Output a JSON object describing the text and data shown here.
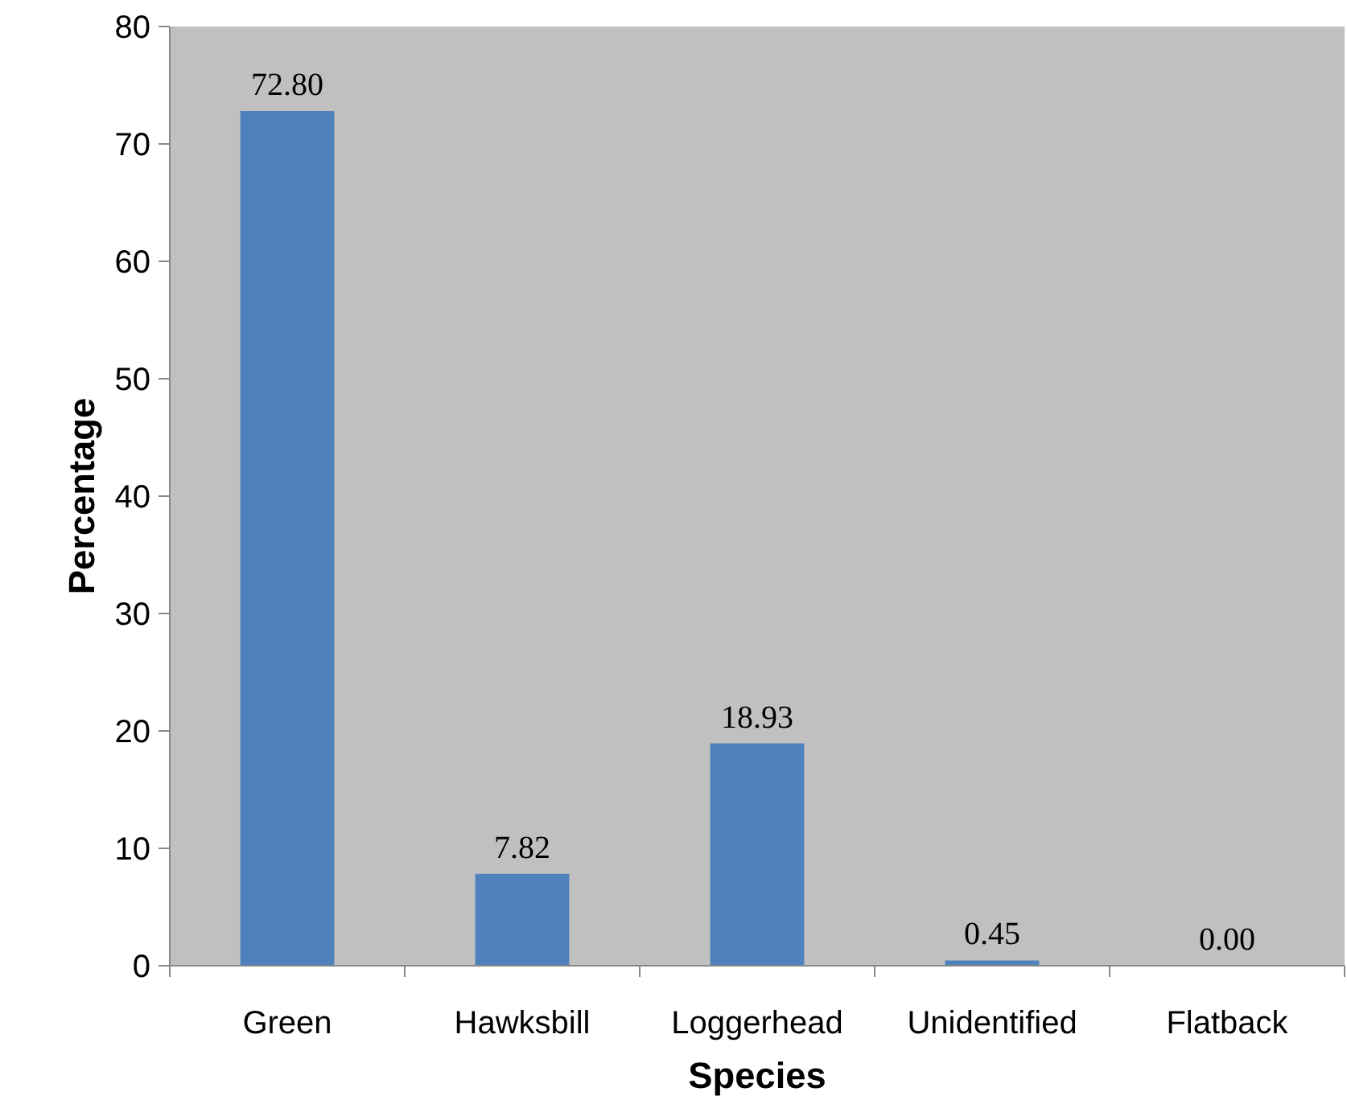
{
  "chart_data": {
    "type": "bar",
    "xlabel": "Species",
    "ylabel": "Percentage",
    "categories": [
      "Green",
      "Hawksbill",
      "Loggerhead",
      "Unidentified",
      "Flatback"
    ],
    "values": [
      72.8,
      7.82,
      18.93,
      0.45,
      0.0
    ],
    "value_labels": [
      "72.80",
      "7.82",
      "18.93",
      "0.45",
      "0.00"
    ],
    "color": "#4f81bd",
    "ylim": [
      0,
      80
    ],
    "yticks": [
      0,
      10,
      20,
      30,
      40,
      50,
      60,
      70,
      80
    ],
    "grid": false
  }
}
